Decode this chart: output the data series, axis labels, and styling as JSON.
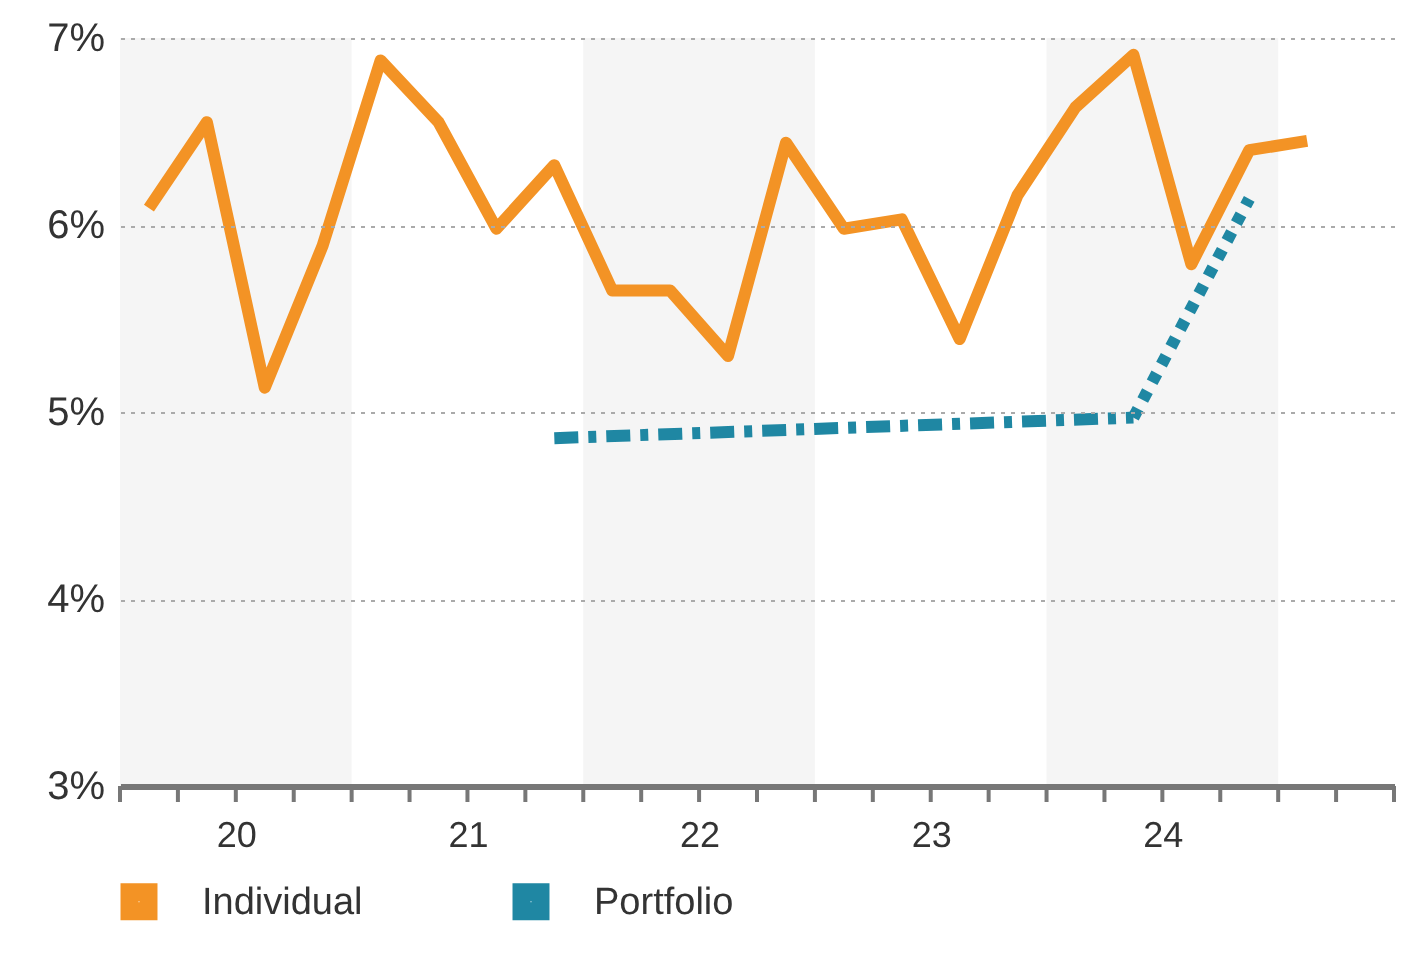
{
  "chart_data": {
    "type": "line",
    "x": [
      19.625,
      19.875,
      20.125,
      20.375,
      20.625,
      20.875,
      21.125,
      21.375,
      21.625,
      21.875,
      22.125,
      22.375,
      22.625,
      22.875,
      23.125,
      23.375,
      23.625,
      23.875,
      24.125,
      24.375,
      24.625
    ],
    "series": [
      {
        "name": "Individual",
        "color": "#f39325",
        "line_style": "solid",
        "values": [
          6.09,
          6.55,
          5.13,
          5.89,
          6.88,
          6.55,
          5.98,
          6.32,
          5.65,
          5.65,
          5.3,
          6.44,
          5.98,
          6.03,
          5.39,
          6.16,
          6.63,
          6.91,
          5.79,
          6.4,
          6.45
        ]
      },
      {
        "name": "Portfolio",
        "color": "#1f87a3",
        "line_style": "dashed",
        "x": [
          21.375,
          23.875
        ],
        "values": [
          4.86,
          4.97
        ]
      },
      {
        "color": "#1f87a3",
        "line_style": "dotted",
        "x": [
          23.875,
          24.375
        ],
        "values": [
          4.97,
          6.14
        ]
      }
    ],
    "xlim": [
      19.5,
      25
    ],
    "xticks": [
      {
        "value": 19.5,
        "label": null
      },
      {
        "value": 19.75,
        "label": null
      },
      20,
      {
        "value": 20.25,
        "label": null
      },
      {
        "value": 20.5,
        "label": null
      },
      {
        "value": 20.75,
        "label": null
      },
      21,
      {
        "value": 21.25,
        "label": null
      },
      {
        "value": 21.5,
        "label": null
      },
      {
        "value": 21.75,
        "label": null
      },
      22,
      {
        "value": 22.25,
        "label": null
      },
      {
        "value": 22.5,
        "label": null
      },
      {
        "value": 22.75,
        "label": null
      },
      23,
      {
        "value": 23.25,
        "label": null
      },
      {
        "value": 23.5,
        "label": null
      },
      {
        "value": 23.75,
        "label": null
      },
      24,
      {
        "value": 24.25,
        "label": null
      },
      {
        "value": 24.5,
        "label": null
      },
      {
        "value": 24.75,
        "label": null
      },
      {
        "value": 25,
        "label": null
      }
    ],
    "ylim": [
      3,
      7
    ],
    "yticks": [
      {
        "value": 3,
        "label": "3%"
      },
      {
        "value": 4,
        "label": "4%"
      },
      {
        "value": 5,
        "label": "5%"
      },
      {
        "value": 6,
        "label": "6%"
      },
      {
        "value": 7,
        "label": "7%"
      }
    ],
    "bands": [
      {
        "axis": "x",
        "from": 19.5,
        "to": 20.5,
        "color": "#f5f5f5"
      },
      {
        "axis": "x",
        "from": 21.5,
        "to": 22.5,
        "color": "#f5f5f5"
      },
      {
        "axis": "x",
        "from": 23.5,
        "to": 24.5,
        "color": "#f5f5f5"
      }
    ],
    "grid": "y",
    "legend": "bottom"
  }
}
